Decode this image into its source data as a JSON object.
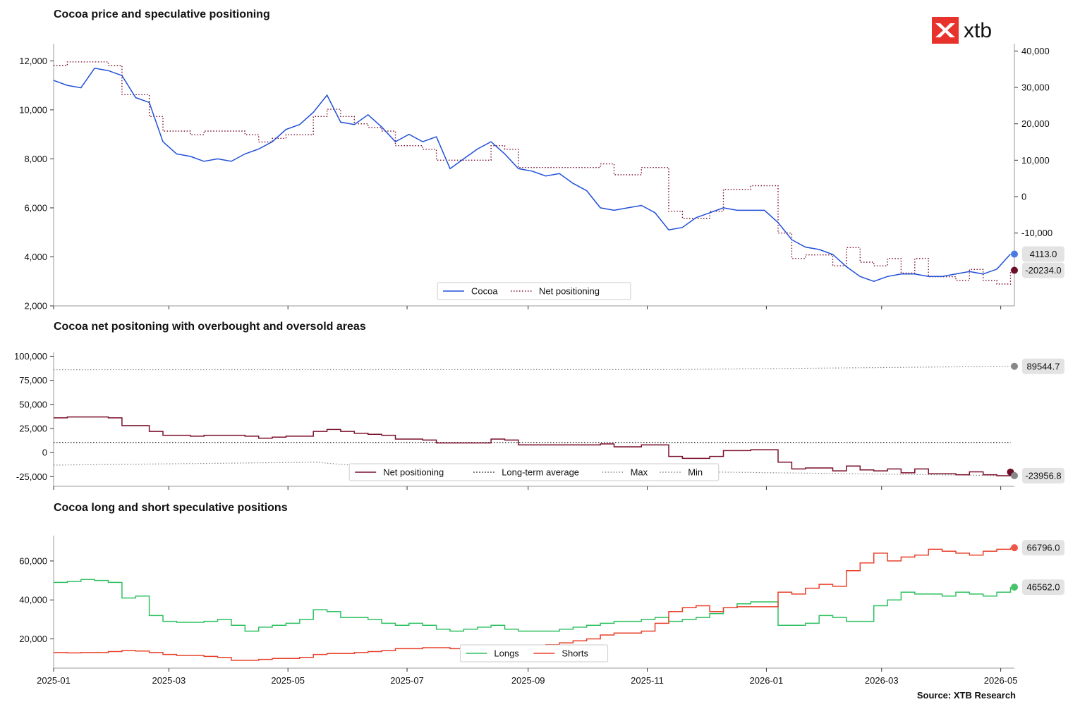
{
  "logo": {
    "text": "xtb",
    "brand_color": "#e8322c"
  },
  "source": "Source: XTB Research",
  "x_axis": {
    "ticks": [
      "2025-01",
      "2025-03",
      "2025-05",
      "2025-07",
      "2025-09",
      "2025-11",
      "2026-01",
      "2026-03",
      "2026-05"
    ],
    "range": [
      "2025-01-01",
      "2026-05-08"
    ]
  },
  "chart_data": [
    {
      "type": "line",
      "title": "Cocoa price and speculative positioning",
      "x": [
        "2025-01-01",
        "2025-01-08",
        "2025-01-15",
        "2025-01-22",
        "2025-01-29",
        "2025-02-05",
        "2025-02-12",
        "2025-02-19",
        "2025-02-26",
        "2025-03-05",
        "2025-03-12",
        "2025-03-19",
        "2025-03-26",
        "2025-04-02",
        "2025-04-09",
        "2025-04-16",
        "2025-04-23",
        "2025-04-30",
        "2025-05-07",
        "2025-05-14",
        "2025-05-21",
        "2025-05-28",
        "2025-06-04",
        "2025-06-11",
        "2025-06-18",
        "2025-06-25",
        "2025-07-02",
        "2025-07-09",
        "2025-07-16",
        "2025-07-23",
        "2025-07-30",
        "2025-08-06",
        "2025-08-13",
        "2025-08-20",
        "2025-08-27",
        "2025-09-03",
        "2025-09-10",
        "2025-09-17",
        "2025-09-24",
        "2025-10-01",
        "2025-10-08",
        "2025-10-15",
        "2025-10-22",
        "2025-10-29",
        "2025-11-05",
        "2025-11-12",
        "2025-11-19",
        "2025-11-26",
        "2025-12-03",
        "2025-12-10",
        "2025-12-17",
        "2025-12-24",
        "2025-12-31",
        "2026-01-07",
        "2026-01-14",
        "2026-01-21",
        "2026-01-28",
        "2026-02-04",
        "2026-02-11",
        "2026-02-18",
        "2026-02-25",
        "2026-03-04",
        "2026-03-11",
        "2026-03-18",
        "2026-03-25",
        "2026-04-01",
        "2026-04-08",
        "2026-04-15",
        "2026-04-22",
        "2026-04-29",
        "2026-05-06"
      ],
      "series": [
        {
          "name": "Cocoa",
          "axis": "left",
          "color": "#1f4fd8",
          "style": "solid",
          "values": [
            11200,
            11000,
            10900,
            11700,
            11600,
            11400,
            10500,
            10300,
            8700,
            8200,
            8100,
            7900,
            8000,
            7900,
            8200,
            8400,
            8700,
            9200,
            9400,
            9900,
            10600,
            9500,
            9400,
            9800,
            9300,
            8700,
            9000,
            8700,
            8900,
            7600,
            8000,
            8400,
            8700,
            8200,
            7600,
            7500,
            7300,
            7400,
            7000,
            6700,
            6000,
            5900,
            6000,
            6100,
            5800,
            5100,
            5200,
            5600,
            5800,
            6000,
            5900,
            5900,
            5900,
            5400,
            4700,
            4400,
            4300,
            4100,
            3600,
            3200,
            3000,
            3200,
            3300,
            3300,
            3200,
            3200,
            3300,
            3400,
            3300,
            3500,
            4113
          ]
        },
        {
          "name": "Net positioning",
          "axis": "right",
          "color": "#7a0f2a",
          "style": "dotted",
          "values": [
            36000,
            37000,
            37000,
            37000,
            36000,
            28000,
            28000,
            22000,
            18000,
            18000,
            17000,
            18000,
            18000,
            18000,
            17000,
            15000,
            16000,
            17000,
            17000,
            22000,
            24000,
            22000,
            20000,
            19000,
            18000,
            14000,
            14000,
            13000,
            10000,
            10000,
            10000,
            10000,
            14000,
            13000,
            8000,
            8000,
            8000,
            8000,
            8000,
            8000,
            9000,
            6000,
            6000,
            8000,
            8000,
            -4000,
            -6000,
            -6000,
            -4000,
            2000,
            2000,
            3000,
            3000,
            -10000,
            -17000,
            -16000,
            -16000,
            -19000,
            -14000,
            -18000,
            -19000,
            -17000,
            -21000,
            -17000,
            -22000,
            -22000,
            -23000,
            -20000,
            -23000,
            -24000,
            -20234
          ]
        }
      ],
      "y_left": {
        "ticks": [
          "2,000",
          "4,000",
          "6,000",
          "8,000",
          "10,000",
          "12,000"
        ],
        "range": [
          2000,
          12700
        ]
      },
      "y_right": {
        "ticks": [
          "-10,000",
          "0",
          "10,000",
          "20,000",
          "30,000",
          "40,000"
        ],
        "range": [
          -30000,
          42000
        ]
      },
      "legend": [
        "Cocoa",
        "Net positioning"
      ],
      "legend_position": "bottom-center",
      "last_labels": [
        "4113.0",
        "-20234.0"
      ]
    },
    {
      "type": "line",
      "title": "Cocoa net positoning with overbought and oversold areas",
      "x_ref": "chart_data.0.x",
      "series": [
        {
          "name": "Net positioning",
          "color": "#7a0f2a",
          "style": "step"
        },
        {
          "name": "Long-term average",
          "color": "#222222",
          "style": "dotted",
          "values": [
            10500,
            10500
          ]
        },
        {
          "name": "Max",
          "color": "#888888",
          "style": "dotted",
          "values": [
            86000,
            89544.7
          ]
        },
        {
          "name": "Min",
          "color": "#888888",
          "style": "dotted",
          "values": [
            -13000,
            -23956.8
          ]
        }
      ],
      "y_left": {
        "ticks": [
          "-25,000",
          "0",
          "25,000",
          "50,000",
          "75,000",
          "100,000"
        ],
        "range": [
          -35000,
          104000
        ]
      },
      "legend": [
        "Net positioning",
        "Long-term average",
        "Max",
        "Min"
      ],
      "legend_position": "bottom-center",
      "last_labels": [
        "89544.7",
        "-23956.8"
      ]
    },
    {
      "type": "line",
      "title": "Cocoa long and short speculative positions",
      "series": [
        {
          "name": "Longs",
          "color": "#2ec060",
          "style": "step",
          "values": [
            49000,
            49500,
            50500,
            50000,
            49000,
            41000,
            42000,
            32000,
            29000,
            28500,
            28500,
            29000,
            30000,
            27000,
            24000,
            26000,
            27000,
            28000,
            30000,
            35000,
            34000,
            31000,
            31000,
            30000,
            28000,
            27000,
            28000,
            27000,
            25000,
            24000,
            25000,
            26000,
            27000,
            25000,
            24000,
            24000,
            24000,
            25000,
            26000,
            27000,
            28000,
            29000,
            29000,
            30000,
            31000,
            29000,
            30000,
            31000,
            33000,
            36000,
            38000,
            39000,
            39000,
            27000,
            27000,
            28000,
            32000,
            31000,
            29000,
            29000,
            37000,
            40000,
            44000,
            43000,
            43000,
            42000,
            44000,
            43000,
            42000,
            44000,
            46562
          ]
        },
        {
          "name": "Shorts",
          "color": "#e8402a",
          "style": "step",
          "values": [
            13000,
            12800,
            13000,
            13000,
            13500,
            14000,
            13800,
            13000,
            12000,
            11500,
            11500,
            11000,
            10500,
            9000,
            9000,
            9500,
            10000,
            10000,
            10500,
            12000,
            12500,
            12500,
            13000,
            13500,
            14000,
            15000,
            15000,
            15500,
            15500,
            15000,
            15000,
            15500,
            15500,
            15000,
            16000,
            16000,
            17000,
            18000,
            19000,
            20000,
            22000,
            23000,
            23000,
            24000,
            28000,
            34000,
            36000,
            37000,
            34000,
            36000,
            36500,
            36500,
            36500,
            44000,
            43000,
            46000,
            48000,
            47000,
            55000,
            59000,
            64000,
            60000,
            62000,
            63000,
            66000,
            65000,
            64000,
            63000,
            65000,
            66000,
            66796
          ]
        }
      ],
      "y_left": {
        "ticks": [
          "20,000",
          "40,000",
          "60,000"
        ],
        "range": [
          5000,
          73000
        ]
      },
      "legend": [
        "Longs",
        "Shorts"
      ],
      "legend_position": "bottom-center",
      "last_labels": [
        "66796.0",
        "46562.0"
      ]
    }
  ]
}
